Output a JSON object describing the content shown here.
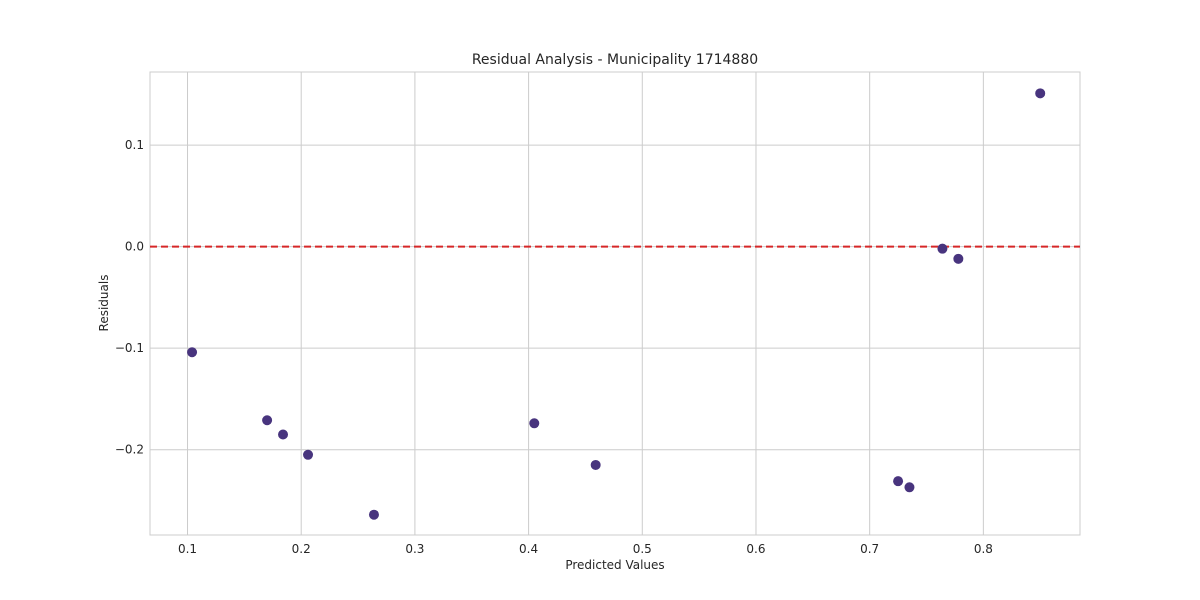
{
  "chart_data": {
    "type": "scatter",
    "title": "Residual Analysis - Municipality 1714880",
    "xlabel": "Predicted Values",
    "ylabel": "Residuals",
    "xlim": [
      0.067,
      0.885
    ],
    "ylim": [
      -0.284,
      0.172
    ],
    "xticks": [
      0.1,
      0.2,
      0.3,
      0.4,
      0.5,
      0.6,
      0.7,
      0.8
    ],
    "xtick_labels": [
      "0.1",
      "0.2",
      "0.3",
      "0.4",
      "0.5",
      "0.6",
      "0.7",
      "0.8"
    ],
    "yticks": [
      -0.2,
      -0.1,
      0.0,
      0.1
    ],
    "ytick_labels": [
      "−0.2",
      "−0.1",
      "0.0",
      "0.1"
    ],
    "grid": true,
    "reference_line": {
      "y": 0.0,
      "color": "#d62728",
      "style": "dashed"
    },
    "series": [
      {
        "color": "#48347e",
        "points": [
          {
            "x": 0.104,
            "y": -0.104
          },
          {
            "x": 0.17,
            "y": -0.171
          },
          {
            "x": 0.184,
            "y": -0.185
          },
          {
            "x": 0.206,
            "y": -0.205
          },
          {
            "x": 0.264,
            "y": -0.264
          },
          {
            "x": 0.405,
            "y": -0.174
          },
          {
            "x": 0.459,
            "y": -0.215
          },
          {
            "x": 0.725,
            "y": -0.231
          },
          {
            "x": 0.735,
            "y": -0.237
          },
          {
            "x": 0.764,
            "y": -0.002
          },
          {
            "x": 0.778,
            "y": -0.012
          },
          {
            "x": 0.85,
            "y": 0.151
          }
        ]
      }
    ]
  }
}
